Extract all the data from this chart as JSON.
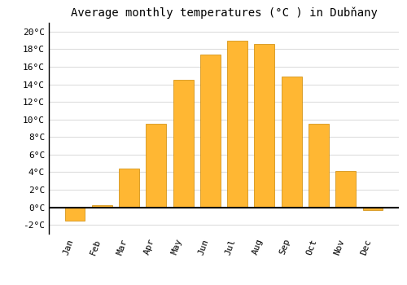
{
  "title": "Average monthly temperatures (°C ) in Dubňany",
  "months": [
    "Jan",
    "Feb",
    "Mar",
    "Apr",
    "May",
    "Jun",
    "Jul",
    "Aug",
    "Sep",
    "Oct",
    "Nov",
    "Dec"
  ],
  "values": [
    -1.5,
    0.2,
    4.4,
    9.5,
    14.5,
    17.4,
    19.0,
    18.6,
    14.9,
    9.5,
    4.1,
    -0.3
  ],
  "bar_color": "#FFB733",
  "bar_edge_color": "#CC8800",
  "background_color": "#ffffff",
  "grid_color": "#dddddd",
  "ylim": [
    -3,
    21
  ],
  "yticks": [
    -2,
    0,
    2,
    4,
    6,
    8,
    10,
    12,
    14,
    16,
    18,
    20
  ],
  "zero_line_color": "#000000",
  "title_fontsize": 10,
  "tick_fontsize": 8,
  "font_family": "monospace"
}
